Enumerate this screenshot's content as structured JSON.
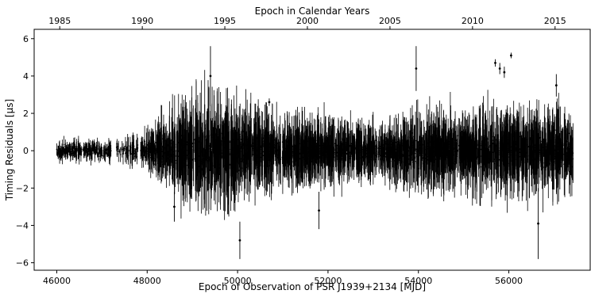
{
  "chart_data": {
    "type": "scatter",
    "title": "",
    "xlabel": "Epoch of Observation of PSR J1939+2134 [MJD]",
    "ylabel": "Timing Residuals [μs]",
    "top_xlabel": "Epoch in Calendar Years",
    "xlim": [
      45500,
      57800
    ],
    "ylim": [
      -6.4,
      6.5
    ],
    "xticks": [
      46000,
      48000,
      50000,
      52000,
      54000,
      56000
    ],
    "xtick_labels": [
      "46000",
      "48000",
      "50000",
      "52000",
      "54000",
      "56000"
    ],
    "yticks": [
      -6,
      -4,
      -2,
      0,
      2,
      4,
      6
    ],
    "ytick_labels": [
      "−6",
      "−4",
      "−2",
      "0",
      "2",
      "4",
      "6"
    ],
    "top_ticks": [
      46066,
      47892,
      49718,
      51544,
      53371,
      55197,
      57023
    ],
    "top_tick_labels": [
      "1985",
      "1990",
      "1995",
      "2000",
      "2005",
      "2010",
      "2015"
    ],
    "grid": false,
    "legend": "none",
    "marker_color": "#000000",
    "errorbar_color": "#000000",
    "envelope": [
      {
        "x": 46000,
        "scatter": 0.25,
        "err": 0.4
      },
      {
        "x": 47000,
        "scatter": 0.25,
        "err": 0.35
      },
      {
        "x": 47900,
        "scatter": 0.3,
        "err": 0.6
      },
      {
        "x": 48600,
        "scatter": 0.8,
        "err": 1.6
      },
      {
        "x": 49400,
        "scatter": 1.0,
        "err": 2.2
      },
      {
        "x": 50000,
        "scatter": 0.9,
        "err": 1.8
      },
      {
        "x": 50500,
        "scatter": 0.7,
        "err": 1.5
      },
      {
        "x": 51000,
        "scatter": 0.5,
        "err": 1.2
      },
      {
        "x": 51700,
        "scatter": 0.5,
        "err": 1.5
      },
      {
        "x": 52500,
        "scatter": 0.35,
        "err": 1.0
      },
      {
        "x": 53200,
        "scatter": 0.4,
        "err": 1.0
      },
      {
        "x": 54000,
        "scatter": 0.7,
        "err": 1.6
      },
      {
        "x": 55000,
        "scatter": 0.6,
        "err": 1.5
      },
      {
        "x": 56000,
        "scatter": 0.7,
        "err": 1.6
      },
      {
        "x": 57400,
        "scatter": 0.7,
        "err": 1.5
      }
    ],
    "points": [
      {
        "x": 50050,
        "y": -4.8,
        "err": 1.0
      },
      {
        "x": 49400,
        "y": 4.0,
        "err": 1.6
      },
      {
        "x": 50700,
        "y": 2.6,
        "err": 0.2
      },
      {
        "x": 55700,
        "y": 4.7,
        "err": 0.2
      },
      {
        "x": 55800,
        "y": 4.4,
        "err": 0.3
      },
      {
        "x": 55900,
        "y": 4.2,
        "err": 0.3
      },
      {
        "x": 56050,
        "y": 5.1,
        "err": 0.15
      },
      {
        "x": 56650,
        "y": -3.9,
        "err": 1.9
      },
      {
        "x": 57050,
        "y": 3.5,
        "err": 0.6
      },
      {
        "x": 53950,
        "y": 4.4,
        "err": 1.2
      },
      {
        "x": 51800,
        "y": -3.2,
        "err": 1.0
      },
      {
        "x": 48600,
        "y": -3.0,
        "err": 0.8
      }
    ]
  }
}
